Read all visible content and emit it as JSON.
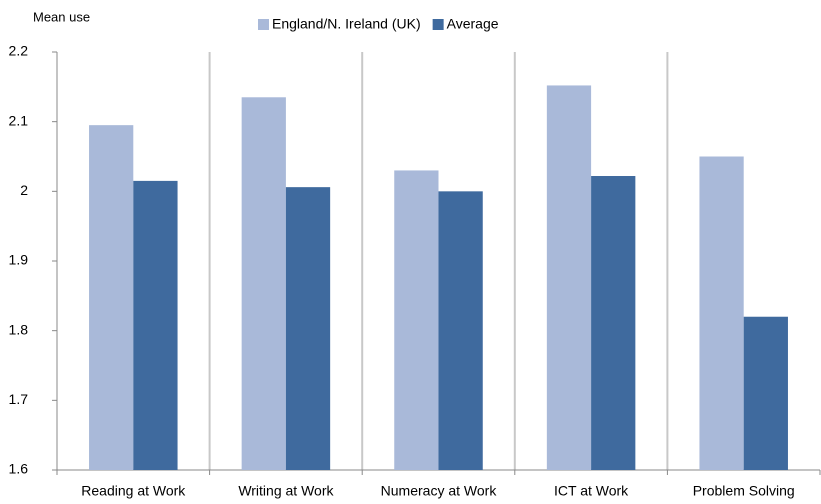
{
  "chart_data": {
    "type": "bar",
    "y_label": "Mean use",
    "categories": [
      "Reading at Work",
      "Writing at Work",
      "Numeracy at Work",
      "ICT at Work",
      "Problem Solving"
    ],
    "series": [
      {
        "name": "England/N. Ireland (UK)",
        "color": "#a9b9d9",
        "values": [
          2.095,
          2.135,
          2.03,
          2.152,
          2.05
        ]
      },
      {
        "name": "Average",
        "color": "#3f6a9e",
        "values": [
          2.015,
          2.006,
          2.0,
          2.022,
          1.82
        ]
      }
    ],
    "ylim": [
      1.6,
      2.2
    ],
    "yticks": [
      1.6,
      1.7,
      1.8,
      1.9,
      2,
      2.1,
      2.2
    ],
    "grid": "vertical",
    "legend": "top"
  }
}
